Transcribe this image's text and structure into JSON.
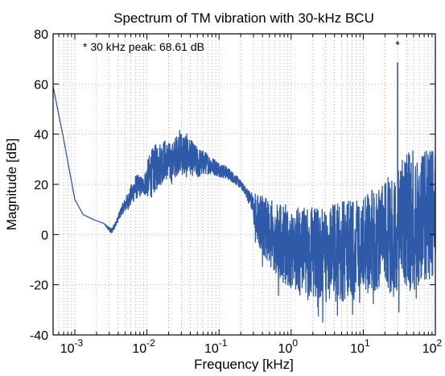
{
  "chart_data": {
    "type": "line",
    "title": "Spectrum of TM vibration with 30-kHz BCU",
    "xlabel": "Frequency [kHz]",
    "ylabel": "Magnitude [dB]",
    "x_scale": "log",
    "xlim": [
      0.0005,
      100
    ],
    "ylim": [
      -40,
      80
    ],
    "grid": "dotted, major and minor",
    "line_color": "#2f5aa8",
    "x_ticks": [
      {
        "value": 0.001,
        "base": "10",
        "exp": "-3"
      },
      {
        "value": 0.01,
        "base": "10",
        "exp": "-2"
      },
      {
        "value": 0.1,
        "base": "10",
        "exp": "-1"
      },
      {
        "value": 1,
        "base": "10",
        "exp": "0"
      },
      {
        "value": 10,
        "base": "10",
        "exp": "1"
      },
      {
        "value": 100,
        "base": "10",
        "exp": "2"
      }
    ],
    "y_ticks": [
      -40,
      -20,
      0,
      20,
      40,
      60,
      80
    ],
    "annotations": [
      {
        "text": "* 30 kHz peak: 68.61 dB"
      },
      {
        "text": "*",
        "x": 30,
        "y": 68.61
      }
    ],
    "envelope": {
      "x": [
        0.0005,
        0.0007,
        0.001,
        0.0013,
        0.0018,
        0.0025,
        0.0032,
        0.0038,
        0.0045,
        0.0055,
        0.007,
        0.009,
        0.011,
        0.014,
        0.018,
        0.022,
        0.028,
        0.034,
        0.04,
        0.05,
        0.065,
        0.08,
        0.1,
        0.13,
        0.17,
        0.22,
        0.28,
        0.35,
        0.5,
        0.8,
        1.3,
        2,
        3.5,
        5,
        8,
        12,
        20,
        30,
        50,
        70,
        100
      ],
      "upper": [
        59,
        38,
        14,
        8,
        6,
        4.5,
        2.5,
        6,
        12,
        17,
        24,
        23,
        33,
        37,
        38,
        36,
        42,
        41,
        38,
        35,
        33,
        31,
        29,
        27,
        24,
        20,
        17,
        16,
        14,
        12,
        11,
        11,
        12,
        13,
        14,
        17,
        21,
        28,
        35,
        33,
        35
      ],
      "lower": [
        59,
        38,
        14,
        8,
        6,
        4.5,
        0,
        4,
        8,
        10,
        14,
        16,
        14,
        18,
        22,
        20,
        25,
        22,
        24,
        22,
        24,
        24,
        23,
        22,
        20,
        17,
        10,
        -5,
        -12,
        -20,
        -23,
        -25,
        -30,
        -28,
        -26,
        -24,
        -22,
        -26,
        -22,
        -20,
        -18
      ]
    },
    "peak": {
      "x": 30,
      "y": 68.61
    }
  }
}
